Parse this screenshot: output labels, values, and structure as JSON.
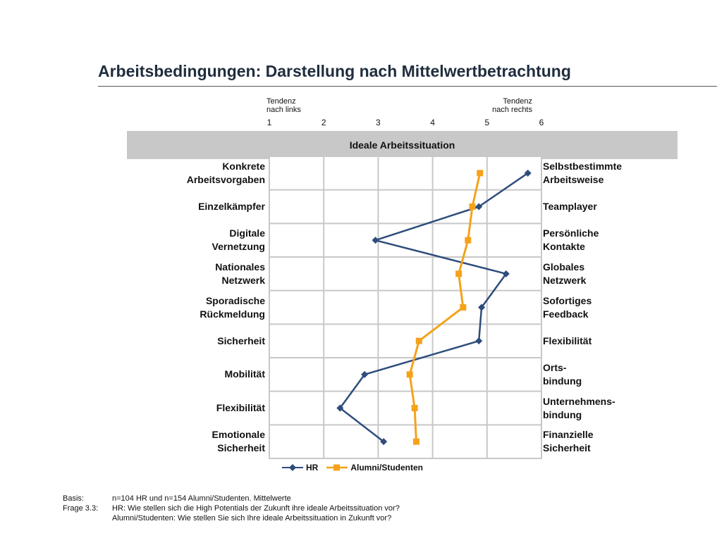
{
  "title": "Arbeitsbedingungen: Darstellung nach Mittelwertbetrachtung",
  "tendency_left": [
    "Tendenz",
    "nach links"
  ],
  "tendency_right": [
    "Tendenz",
    "nach rechts"
  ],
  "chart_data": {
    "type": "line",
    "title": "Ideale Arbeitssituation",
    "xlim": [
      1,
      6
    ],
    "x_ticks": [
      "1",
      "2",
      "3",
      "4",
      "5",
      "6"
    ],
    "grid": true,
    "legend_position": "bottom",
    "left_labels": [
      "Konkrete Arbeitsvorgaben",
      "Einzelkämpfer",
      "Digitale Vernetzung",
      "Nationales Netzwerk",
      "Sporadische Rückmeldung",
      "Sicherheit",
      "Mobilität",
      "Flexibilität",
      "Emotionale Sicherheit"
    ],
    "right_labels": [
      "Selbstbestimmte Arbeitsweise",
      "Teamplayer",
      "Persönliche Kontakte",
      "Globales Netzwerk",
      "Sofortiges Feedback",
      "Flexibilität",
      "Orts- bindung",
      "Unternehmens- bindung",
      "Finanzielle Sicherheit"
    ],
    "series": [
      {
        "name": "HR",
        "color": "#2e4d7b",
        "marker": "diamond",
        "values": [
          5.75,
          4.85,
          2.95,
          5.35,
          4.9,
          4.85,
          2.75,
          2.3,
          3.1
        ]
      },
      {
        "name": "Alumni/Studenten",
        "color": "#f5a21b",
        "marker": "square",
        "values": [
          4.87,
          4.73,
          4.65,
          4.48,
          4.56,
          3.75,
          3.58,
          3.67,
          3.7
        ]
      }
    ]
  },
  "footer": {
    "basis_key": "Basis:",
    "basis_text": "n=104 HR und n=154 Alumni/Studenten. Mittelwerte",
    "frage_key": "Frage  3.3:",
    "frage_hr": "HR: Wie stellen sich die High Potentials der Zukunft ihre ideale Arbeitssituation vor?",
    "frage_alumni": "Alumni/Studenten: Wie stellen Sie sich Ihre ideale Arbeitssituation in Zukunft vor?"
  }
}
